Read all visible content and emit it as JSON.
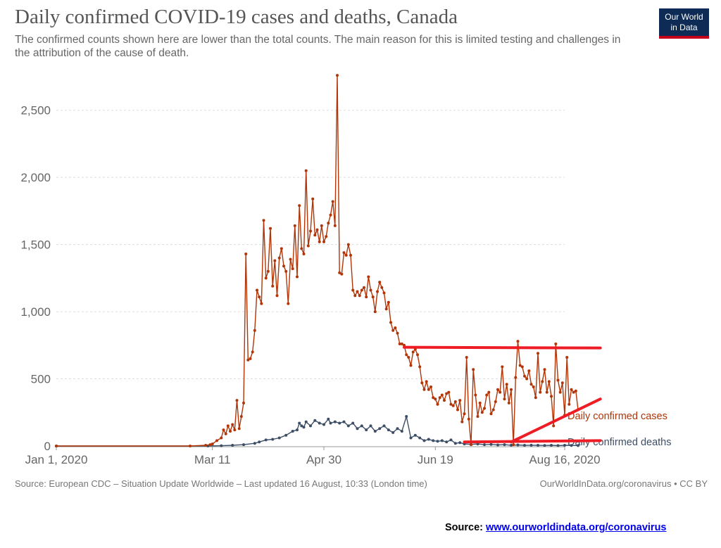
{
  "title": "Daily confirmed COVID-19 cases and deaths, Canada",
  "subtitle": "The confirmed counts shown here are lower than the total counts. The main reason for this is limited testing and challenges in the attribution of the cause of death.",
  "logo": {
    "line1": "Our World",
    "line2": "in Data"
  },
  "footer": {
    "source": "Source: European CDC – Situation Update Worldwide – Last updated 16 August, 10:33 (London time)",
    "credit": "OurWorldInData.org/coronavirus • CC BY",
    "bottom_source_label": "Source:",
    "bottom_source_link": "www.ourworldindata.org/coronavirus"
  },
  "colors": {
    "cases": "#b13507",
    "deaths": "#3c4e66",
    "annotation": "#ee1c24",
    "grid": "#dddddd",
    "tick_text": "#666666"
  },
  "chart_data": {
    "type": "line",
    "title": "Daily confirmed COVID-19 cases and deaths, Canada",
    "x_range": [
      "2020-01-01",
      "2020-08-16"
    ],
    "x_tick_labels": [
      {
        "date": "2020-01-01",
        "label": "Jan 1, 2020"
      },
      {
        "date": "2020-03-11",
        "label": "Mar 11"
      },
      {
        "date": "2020-04-30",
        "label": "Apr 30"
      },
      {
        "date": "2020-06-19",
        "label": "Jun 19"
      },
      {
        "date": "2020-08-16",
        "label": "Aug 16, 2020"
      }
    ],
    "ylim": [
      0,
      2750
    ],
    "y_ticks": [
      {
        "value": 0,
        "label": "0"
      },
      {
        "value": 500,
        "label": "500"
      },
      {
        "value": 1000,
        "label": "1,000"
      },
      {
        "value": 1500,
        "label": "1,500"
      },
      {
        "value": 2000,
        "label": "2,000"
      },
      {
        "value": 2500,
        "label": "2,500"
      }
    ],
    "grid": true,
    "legend": "inline-right",
    "series": [
      {
        "name": "Daily confirmed cases",
        "color": "#b13507",
        "points": [
          [
            "2020-01-01",
            0
          ],
          [
            "2020-03-01",
            0
          ],
          [
            "2020-03-08",
            5
          ],
          [
            "2020-03-10",
            10
          ],
          [
            "2020-03-11",
            15
          ],
          [
            "2020-03-13",
            40
          ],
          [
            "2020-03-15",
            60
          ],
          [
            "2020-03-16",
            120
          ],
          [
            "2020-03-17",
            90
          ],
          [
            "2020-03-18",
            150
          ],
          [
            "2020-03-19",
            110
          ],
          [
            "2020-03-20",
            160
          ],
          [
            "2020-03-21",
            120
          ],
          [
            "2020-03-22",
            340
          ],
          [
            "2020-03-23",
            130
          ],
          [
            "2020-03-24",
            220
          ],
          [
            "2020-03-25",
            320
          ],
          [
            "2020-03-26",
            1430
          ],
          [
            "2020-03-27",
            640
          ],
          [
            "2020-03-28",
            650
          ],
          [
            "2020-03-29",
            700
          ],
          [
            "2020-03-30",
            860
          ],
          [
            "2020-03-31",
            1160
          ],
          [
            "2020-04-01",
            1110
          ],
          [
            "2020-04-02",
            1060
          ],
          [
            "2020-04-03",
            1680
          ],
          [
            "2020-04-04",
            1250
          ],
          [
            "2020-04-05",
            1300
          ],
          [
            "2020-04-06",
            1620
          ],
          [
            "2020-04-07",
            1190
          ],
          [
            "2020-04-08",
            1380
          ],
          [
            "2020-04-09",
            1120
          ],
          [
            "2020-04-10",
            1400
          ],
          [
            "2020-04-11",
            1470
          ],
          [
            "2020-04-12",
            1340
          ],
          [
            "2020-04-13",
            1300
          ],
          [
            "2020-04-14",
            1060
          ],
          [
            "2020-04-15",
            1390
          ],
          [
            "2020-04-16",
            1320
          ],
          [
            "2020-04-17",
            1640
          ],
          [
            "2020-04-18",
            1260
          ],
          [
            "2020-04-19",
            1790
          ],
          [
            "2020-04-20",
            1470
          ],
          [
            "2020-04-21",
            1430
          ],
          [
            "2020-04-22",
            2050
          ],
          [
            "2020-04-23",
            1490
          ],
          [
            "2020-04-24",
            1600
          ],
          [
            "2020-04-25",
            1840
          ],
          [
            "2020-04-26",
            1570
          ],
          [
            "2020-04-27",
            1610
          ],
          [
            "2020-04-28",
            1520
          ],
          [
            "2020-04-29",
            1640
          ],
          [
            "2020-04-30",
            1520
          ],
          [
            "2020-05-01",
            1560
          ],
          [
            "2020-05-02",
            1660
          ],
          [
            "2020-05-03",
            1720
          ],
          [
            "2020-05-04",
            1820
          ],
          [
            "2020-05-05",
            1640
          ],
          [
            "2020-05-06",
            2760
          ],
          [
            "2020-05-07",
            1290
          ],
          [
            "2020-05-08",
            1280
          ],
          [
            "2020-05-09",
            1440
          ],
          [
            "2020-05-10",
            1420
          ],
          [
            "2020-05-11",
            1500
          ],
          [
            "2020-05-12",
            1420
          ],
          [
            "2020-05-13",
            1160
          ],
          [
            "2020-05-14",
            1120
          ],
          [
            "2020-05-15",
            1150
          ],
          [
            "2020-05-16",
            1120
          ],
          [
            "2020-05-17",
            1160
          ],
          [
            "2020-05-18",
            1180
          ],
          [
            "2020-05-19",
            1110
          ],
          [
            "2020-05-20",
            1260
          ],
          [
            "2020-05-21",
            1160
          ],
          [
            "2020-05-22",
            1110
          ],
          [
            "2020-05-23",
            1000
          ],
          [
            "2020-05-24",
            1150
          ],
          [
            "2020-05-25",
            1220
          ],
          [
            "2020-05-26",
            1180
          ],
          [
            "2020-05-27",
            1140
          ],
          [
            "2020-05-28",
            1020
          ],
          [
            "2020-05-29",
            1070
          ],
          [
            "2020-05-30",
            920
          ],
          [
            "2020-05-31",
            860
          ],
          [
            "2020-06-01",
            880
          ],
          [
            "2020-06-02",
            840
          ],
          [
            "2020-06-03",
            760
          ],
          [
            "2020-06-04",
            760
          ],
          [
            "2020-06-05",
            750
          ],
          [
            "2020-06-06",
            680
          ],
          [
            "2020-06-07",
            660
          ],
          [
            "2020-06-08",
            600
          ],
          [
            "2020-06-09",
            700
          ],
          [
            "2020-06-10",
            720
          ],
          [
            "2020-06-11",
            680
          ],
          [
            "2020-06-12",
            590
          ],
          [
            "2020-06-13",
            470
          ],
          [
            "2020-06-14",
            420
          ],
          [
            "2020-06-15",
            480
          ],
          [
            "2020-06-16",
            420
          ],
          [
            "2020-06-17",
            440
          ],
          [
            "2020-06-18",
            360
          ],
          [
            "2020-06-19",
            350
          ],
          [
            "2020-06-20",
            310
          ],
          [
            "2020-06-21",
            360
          ],
          [
            "2020-06-22",
            380
          ],
          [
            "2020-06-23",
            340
          ],
          [
            "2020-06-24",
            390
          ],
          [
            "2020-06-25",
            400
          ],
          [
            "2020-06-26",
            310
          ],
          [
            "2020-06-27",
            300
          ],
          [
            "2020-06-28",
            330
          ],
          [
            "2020-06-29",
            270
          ],
          [
            "2020-06-30",
            340
          ],
          [
            "2020-07-01",
            180
          ],
          [
            "2020-07-02",
            240
          ],
          [
            "2020-07-03",
            660
          ],
          [
            "2020-07-04",
            200
          ],
          [
            "2020-07-05",
            10
          ],
          [
            "2020-07-06",
            570
          ],
          [
            "2020-07-07",
            380
          ],
          [
            "2020-07-08",
            220
          ],
          [
            "2020-07-09",
            320
          ],
          [
            "2020-07-10",
            250
          ],
          [
            "2020-07-11",
            280
          ],
          [
            "2020-07-12",
            380
          ],
          [
            "2020-07-13",
            400
          ],
          [
            "2020-07-14",
            240
          ],
          [
            "2020-07-15",
            270
          ],
          [
            "2020-07-16",
            330
          ],
          [
            "2020-07-17",
            420
          ],
          [
            "2020-07-18",
            400
          ],
          [
            "2020-07-19",
            590
          ],
          [
            "2020-07-20",
            350
          ],
          [
            "2020-07-21",
            460
          ],
          [
            "2020-07-22",
            320
          ],
          [
            "2020-07-23",
            420
          ],
          [
            "2020-07-24",
            10
          ],
          [
            "2020-07-25",
            510
          ],
          [
            "2020-07-26",
            780
          ],
          [
            "2020-07-27",
            600
          ],
          [
            "2020-07-28",
            590
          ],
          [
            "2020-07-29",
            520
          ],
          [
            "2020-07-30",
            500
          ],
          [
            "2020-07-31",
            560
          ],
          [
            "2020-08-01",
            460
          ],
          [
            "2020-08-02",
            440
          ],
          [
            "2020-08-03",
            360
          ],
          [
            "2020-08-04",
            690
          ],
          [
            "2020-08-05",
            400
          ],
          [
            "2020-08-06",
            480
          ],
          [
            "2020-08-07",
            570
          ],
          [
            "2020-08-08",
            400
          ],
          [
            "2020-08-09",
            480
          ],
          [
            "2020-08-10",
            370
          ],
          [
            "2020-08-11",
            150
          ],
          [
            "2020-08-12",
            760
          ],
          [
            "2020-08-13",
            490
          ],
          [
            "2020-08-14",
            400
          ],
          [
            "2020-08-15",
            470
          ],
          [
            "2020-08-16",
            230
          ],
          [
            "2020-08-17",
            660
          ],
          [
            "2020-08-18",
            310
          ],
          [
            "2020-08-19",
            420
          ],
          [
            "2020-08-20",
            400
          ],
          [
            "2020-08-21",
            410
          ],
          [
            "2020-08-22",
            270
          ]
        ]
      },
      {
        "name": "Daily confirmed deaths",
        "color": "#3c4e66",
        "points": [
          [
            "2020-01-01",
            0
          ],
          [
            "2020-03-09",
            0
          ],
          [
            "2020-03-15",
            2
          ],
          [
            "2020-03-20",
            5
          ],
          [
            "2020-03-25",
            10
          ],
          [
            "2020-03-30",
            20
          ],
          [
            "2020-04-01",
            30
          ],
          [
            "2020-04-04",
            45
          ],
          [
            "2020-04-07",
            50
          ],
          [
            "2020-04-10",
            60
          ],
          [
            "2020-04-13",
            80
          ],
          [
            "2020-04-16",
            110
          ],
          [
            "2020-04-18",
            120
          ],
          [
            "2020-04-19",
            170
          ],
          [
            "2020-04-20",
            150
          ],
          [
            "2020-04-21",
            140
          ],
          [
            "2020-04-22",
            180
          ],
          [
            "2020-04-24",
            150
          ],
          [
            "2020-04-26",
            190
          ],
          [
            "2020-04-28",
            170
          ],
          [
            "2020-04-30",
            160
          ],
          [
            "2020-05-02",
            200
          ],
          [
            "2020-05-03",
            170
          ],
          [
            "2020-05-05",
            180
          ],
          [
            "2020-05-07",
            170
          ],
          [
            "2020-05-09",
            180
          ],
          [
            "2020-05-11",
            150
          ],
          [
            "2020-05-13",
            170
          ],
          [
            "2020-05-15",
            130
          ],
          [
            "2020-05-17",
            150
          ],
          [
            "2020-05-19",
            120
          ],
          [
            "2020-05-21",
            150
          ],
          [
            "2020-05-23",
            110
          ],
          [
            "2020-05-25",
            130
          ],
          [
            "2020-05-27",
            150
          ],
          [
            "2020-05-29",
            120
          ],
          [
            "2020-05-31",
            100
          ],
          [
            "2020-06-02",
            130
          ],
          [
            "2020-06-04",
            110
          ],
          [
            "2020-06-06",
            220
          ],
          [
            "2020-06-08",
            60
          ],
          [
            "2020-06-10",
            80
          ],
          [
            "2020-06-12",
            60
          ],
          [
            "2020-06-14",
            40
          ],
          [
            "2020-06-16",
            50
          ],
          [
            "2020-06-18",
            40
          ],
          [
            "2020-06-20",
            35
          ],
          [
            "2020-06-22",
            40
          ],
          [
            "2020-06-24",
            30
          ],
          [
            "2020-06-26",
            45
          ],
          [
            "2020-06-28",
            20
          ],
          [
            "2020-06-30",
            25
          ],
          [
            "2020-07-02",
            15
          ],
          [
            "2020-07-05",
            12
          ],
          [
            "2020-07-08",
            15
          ],
          [
            "2020-07-11",
            10
          ],
          [
            "2020-07-14",
            12
          ],
          [
            "2020-07-17",
            8
          ],
          [
            "2020-07-20",
            10
          ],
          [
            "2020-07-23",
            6
          ],
          [
            "2020-07-26",
            8
          ],
          [
            "2020-07-29",
            5
          ],
          [
            "2020-08-01",
            6
          ],
          [
            "2020-08-04",
            5
          ],
          [
            "2020-08-07",
            4
          ],
          [
            "2020-08-10",
            5
          ],
          [
            "2020-08-13",
            3
          ],
          [
            "2020-08-16",
            5
          ],
          [
            "2020-08-19",
            4
          ],
          [
            "2020-08-22",
            3
          ]
        ]
      }
    ],
    "annotations": [
      {
        "type": "line",
        "from": [
          "2020-06-05",
          735
        ],
        "to": [
          "2020-09-01",
          730
        ]
      },
      {
        "type": "line",
        "from": [
          "2020-07-02",
          30
        ],
        "to": [
          "2020-09-01",
          40
        ]
      },
      {
        "type": "line",
        "from": [
          "2020-07-23",
          30
        ],
        "to": [
          "2020-09-01",
          350
        ]
      }
    ]
  }
}
